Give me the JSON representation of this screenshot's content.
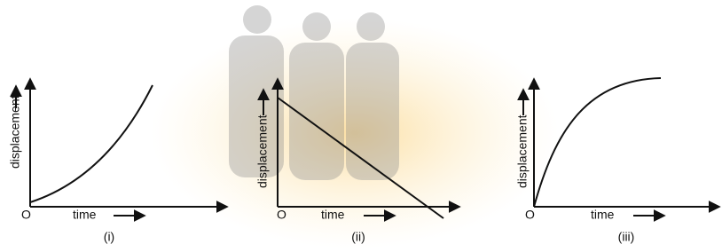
{
  "graphs": [
    {
      "y_label": "displacement",
      "x_label": "time",
      "origin": "O",
      "caption": "(i)"
    },
    {
      "y_label": "displacement",
      "x_label": "time",
      "origin": "O",
      "caption": "(ii)"
    },
    {
      "y_label": "displacement",
      "x_label": "time",
      "origin": "O",
      "caption": "(iii)"
    }
  ]
}
